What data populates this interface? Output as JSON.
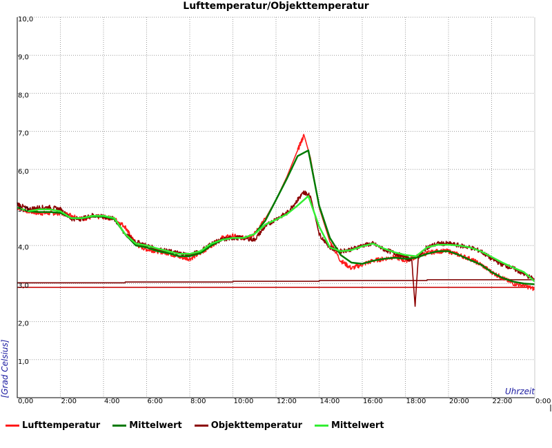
{
  "chart_data": {
    "type": "line",
    "title": "Lufttemperatur/Objekttemperatur",
    "xlabel": "Uhrzeit",
    "ylabel": "[Grad Celsius]",
    "xlim": [
      0,
      24
    ],
    "ylim": [
      0,
      10
    ],
    "xticks": [
      "0,00",
      "2:00",
      "4:00",
      "6:00",
      "8:00",
      "10:00",
      "12:00",
      "14:00",
      "16:00",
      "18:00",
      "20:00",
      "22:00",
      "0:00"
    ],
    "yticks": [
      "1,0",
      "2,0",
      "3,0",
      "4,0",
      "5,0",
      "6,0",
      "7,0",
      "8,0",
      "9,0",
      "10,0"
    ],
    "grid": true,
    "legend_position": "bottom",
    "x_units": "hours since 0:00",
    "series": [
      {
        "name": "Lufttemperatur",
        "color": "#ff1a1a",
        "x": [
          0,
          0.5,
          1,
          1.5,
          2,
          2.5,
          3,
          3.5,
          4,
          4.5,
          5,
          5.3,
          5.6,
          6,
          6.5,
          7,
          7.5,
          8,
          8.5,
          9,
          9.5,
          10,
          10.5,
          11,
          11.5,
          12,
          12.5,
          13,
          13.3,
          13.6,
          14,
          14.5,
          15,
          15.5,
          16,
          16.5,
          17,
          17.5,
          18,
          18.5,
          19,
          19.5,
          20,
          20.5,
          21,
          21.5,
          22,
          22.5,
          23,
          23.5,
          24
        ],
        "y": [
          5.0,
          4.9,
          4.85,
          4.85,
          4.85,
          4.8,
          4.7,
          4.75,
          4.75,
          4.7,
          4.5,
          4.2,
          4.0,
          3.9,
          3.85,
          3.8,
          3.7,
          3.65,
          3.8,
          4.0,
          4.2,
          4.25,
          4.2,
          4.3,
          4.7,
          5.2,
          5.8,
          6.5,
          6.9,
          6.3,
          5.0,
          4.1,
          3.6,
          3.4,
          3.5,
          3.6,
          3.65,
          3.7,
          3.6,
          3.7,
          3.8,
          3.85,
          3.85,
          3.75,
          3.65,
          3.5,
          3.3,
          3.15,
          3.0,
          2.95,
          2.85
        ]
      },
      {
        "name": "Mittelwert",
        "color": "#007a00",
        "x": [
          0,
          0.5,
          1,
          1.5,
          2,
          2.5,
          3,
          3.5,
          4,
          4.5,
          5,
          5.5,
          6,
          6.5,
          7,
          7.5,
          8,
          8.5,
          9,
          9.5,
          10,
          10.5,
          11,
          11.5,
          12,
          12.5,
          13,
          13.5,
          14,
          14.5,
          15,
          15.5,
          16,
          16.5,
          17,
          17.5,
          18,
          18.5,
          19,
          19.5,
          20,
          20.5,
          21,
          21.5,
          22,
          22.5,
          23,
          23.5,
          24
        ],
        "y": [
          5.0,
          4.9,
          4.88,
          4.88,
          4.86,
          4.72,
          4.72,
          4.76,
          4.76,
          4.7,
          4.3,
          4.0,
          3.95,
          3.85,
          3.8,
          3.72,
          3.72,
          3.8,
          4.0,
          4.15,
          4.2,
          4.2,
          4.3,
          4.65,
          5.2,
          5.75,
          6.35,
          6.5,
          5.05,
          4.2,
          3.75,
          3.55,
          3.52,
          3.6,
          3.65,
          3.68,
          3.65,
          3.68,
          3.78,
          3.85,
          3.85,
          3.75,
          3.62,
          3.5,
          3.3,
          3.15,
          3.05,
          3.0,
          2.98
        ]
      },
      {
        "name": "Objekttemperatur",
        "color": "#8b0000",
        "x": [
          0,
          0.5,
          1,
          1.5,
          2,
          2.5,
          3,
          3.5,
          4,
          4.5,
          5,
          5.5,
          6,
          6.5,
          7,
          7.5,
          8,
          8.5,
          9,
          9.5,
          10,
          10.5,
          11,
          11.5,
          12,
          12.5,
          13,
          13.3,
          13.6,
          14,
          14.5,
          15,
          15.5,
          16,
          16.5,
          17,
          17.5,
          18,
          18.3,
          18.45,
          18.6,
          19,
          19.5,
          20,
          20.5,
          21,
          21.5,
          22,
          22.5,
          23,
          23.5,
          24
        ],
        "y": [
          5.1,
          4.95,
          5.0,
          5.0,
          4.95,
          4.7,
          4.7,
          4.8,
          4.75,
          4.7,
          4.3,
          4.1,
          4.0,
          3.9,
          3.85,
          3.8,
          3.75,
          3.85,
          4.05,
          4.15,
          4.2,
          4.2,
          4.15,
          4.5,
          4.7,
          4.85,
          5.2,
          5.4,
          5.3,
          4.3,
          3.95,
          3.85,
          3.9,
          4.0,
          4.05,
          3.9,
          3.8,
          3.7,
          3.6,
          2.4,
          3.7,
          3.95,
          4.05,
          4.05,
          4.0,
          3.95,
          3.85,
          3.65,
          3.5,
          3.4,
          3.25,
          3.1
        ]
      },
      {
        "name": "Mittelwert",
        "color": "#33ee33",
        "x": [
          0,
          0.5,
          1,
          1.5,
          2,
          2.5,
          3,
          3.5,
          4,
          4.5,
          5,
          5.5,
          6,
          6.5,
          7,
          7.5,
          8,
          8.5,
          9,
          9.5,
          10,
          10.5,
          11,
          11.5,
          12,
          12.5,
          13,
          13.5,
          14,
          14.5,
          15,
          15.5,
          16,
          16.5,
          17,
          17.5,
          18,
          18.5,
          19,
          19.5,
          20,
          20.5,
          21,
          21.5,
          22,
          22.5,
          23,
          23.5,
          24
        ],
        "y": [
          5.0,
          4.9,
          4.95,
          4.95,
          4.9,
          4.72,
          4.72,
          4.78,
          4.78,
          4.72,
          4.3,
          4.05,
          4.0,
          3.92,
          3.85,
          3.78,
          3.78,
          3.85,
          4.05,
          4.15,
          4.2,
          4.2,
          4.3,
          4.55,
          4.68,
          4.82,
          5.05,
          5.3,
          4.5,
          3.95,
          3.85,
          3.88,
          3.98,
          4.05,
          3.92,
          3.82,
          3.75,
          3.72,
          3.95,
          4.02,
          4.02,
          4.0,
          3.95,
          3.85,
          3.7,
          3.55,
          3.42,
          3.3,
          3.05
        ]
      },
      {
        "name": "",
        "color": "#8b1a1a",
        "x": [
          0,
          5,
          5.01,
          10,
          10.01,
          14,
          14.01,
          19,
          19.01,
          24
        ],
        "y": [
          3.02,
          3.02,
          3.04,
          3.04,
          3.06,
          3.06,
          3.08,
          3.08,
          3.1,
          3.1
        ]
      },
      {
        "name": "",
        "color": "#cc1a1a",
        "x": [
          0,
          24
        ],
        "y": [
          2.9,
          2.9
        ]
      }
    ]
  }
}
